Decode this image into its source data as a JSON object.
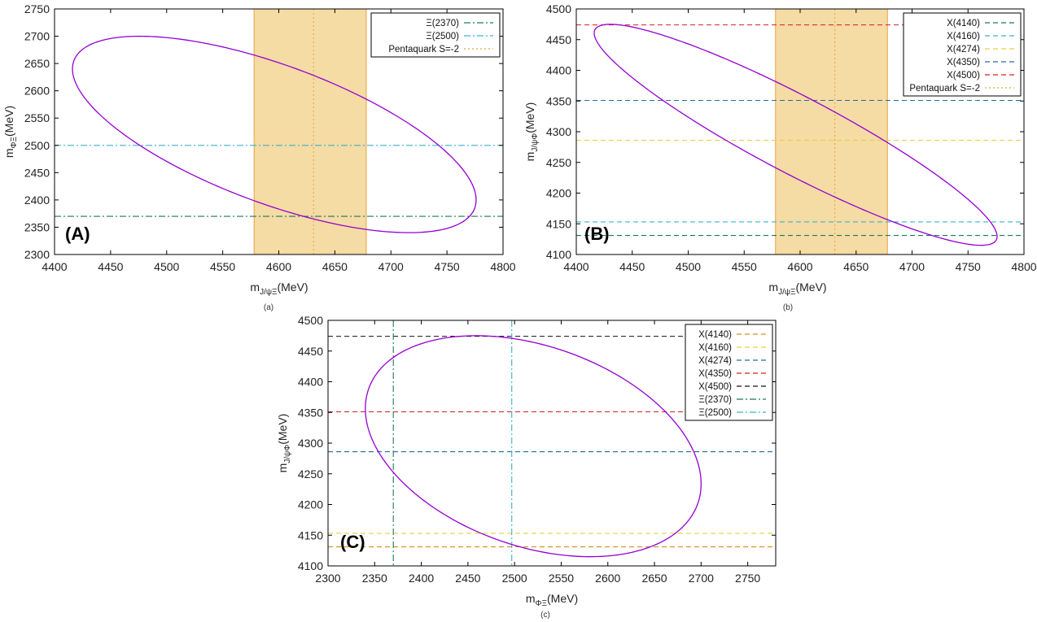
{
  "chart_data": [
    {
      "type": "line",
      "panel_letter": "(A)",
      "caption": "(a)",
      "xlabel": {
        "base": "m",
        "sub": "J/ψΞ",
        "unit": "(MeV)"
      },
      "ylabel": {
        "base": "m",
        "sub": "ΦΞ",
        "unit": "(MeV)"
      },
      "xlim": [
        4400,
        4800
      ],
      "ylim": [
        2300,
        2750
      ],
      "xticks": [
        4400,
        4450,
        4500,
        4550,
        4600,
        4650,
        4700,
        4750,
        4800
      ],
      "yticks": [
        2300,
        2350,
        2400,
        2450,
        2500,
        2550,
        2600,
        2650,
        2700,
        2750
      ],
      "ellipse": {
        "center": [
          4596,
          2520
        ],
        "semi_axis_x": 180,
        "semi_axis_y": 180,
        "rho": -0.667,
        "color": "#9400d3"
      },
      "band": {
        "x0": 4578,
        "x1": 4678,
        "center": 4631,
        "name": "Pentaquark S=-2",
        "color": "#e8a33a"
      },
      "hlines": [
        {
          "name": "Ξ(2370)",
          "y": 2370,
          "color": "#1a7a5a",
          "dash": "dashdot"
        },
        {
          "name": "Ξ(2500)",
          "y": 2500,
          "color": "#3ab0d0",
          "dash": "dashdot"
        }
      ],
      "vlines": [],
      "legend": [
        {
          "label": "Ξ(2370)",
          "color": "#1a7a5a",
          "dash": "dashdot"
        },
        {
          "label": "Ξ(2500)",
          "color": "#3ab0d0",
          "dash": "dashdot"
        },
        {
          "label": "Pentaquark S=-2",
          "color": "#e8a33a",
          "dash": "dot"
        }
      ],
      "legend_position": "top-right"
    },
    {
      "type": "line",
      "panel_letter": "(B)",
      "caption": "(b)",
      "xlabel": {
        "base": "m",
        "sub": "J/ψΞ",
        "unit": "(MeV)"
      },
      "ylabel": {
        "base": "m",
        "sub": "J/ψΦ",
        "unit": "(MeV)"
      },
      "xlim": [
        4400,
        4800
      ],
      "ylim": [
        4100,
        4500
      ],
      "xticks": [
        4400,
        4450,
        4500,
        4550,
        4600,
        4650,
        4700,
        4750,
        4800
      ],
      "yticks": [
        4100,
        4150,
        4200,
        4250,
        4300,
        4350,
        4400,
        4450,
        4500
      ],
      "ellipse": {
        "center": [
          4596,
          4295
        ],
        "semi_axis_x": 180,
        "semi_axis_y": 180,
        "rho": -0.92,
        "color": "#9400d3"
      },
      "band": {
        "x0": 4578,
        "x1": 4678,
        "center": 4631,
        "name": "Pentaquark S=-2",
        "color": "#e8a33a"
      },
      "hlines": [
        {
          "name": "X(4140)",
          "y": 4131,
          "color": "#1a7a5a",
          "dash": "dash"
        },
        {
          "name": "X(4160)",
          "y": 4153,
          "color": "#3ab0d0",
          "dash": "dash"
        },
        {
          "name": "X(4274)",
          "y": 4286,
          "color": "#e8d040",
          "dash": "dash"
        },
        {
          "name": "X(4350)",
          "y": 4351,
          "color": "#2a6a9a",
          "dash": "dash"
        },
        {
          "name": "X(4500)",
          "y": 4474,
          "color": "#d02020",
          "dash": "dash"
        }
      ],
      "vlines": [],
      "legend": [
        {
          "label": "X(4140)",
          "color": "#1a7a5a",
          "dash": "dash"
        },
        {
          "label": "X(4160)",
          "color": "#3ab0d0",
          "dash": "dash"
        },
        {
          "label": "X(4274)",
          "color": "#e8d040",
          "dash": "dash"
        },
        {
          "label": "X(4350)",
          "color": "#2a6a9a",
          "dash": "dash"
        },
        {
          "label": "X(4500)",
          "color": "#d02020",
          "dash": "dash"
        },
        {
          "label": "Pentaquark S=-2",
          "color": "#e8a33a",
          "dash": "dot"
        }
      ],
      "legend_position": "top-right"
    },
    {
      "type": "line",
      "panel_letter": "(C)",
      "caption": "(c)",
      "xlabel": {
        "base": "m",
        "sub": "ΦΞ",
        "unit": "(MeV)"
      },
      "ylabel": {
        "base": "m",
        "sub": "J/ψΦ",
        "unit": "(MeV)"
      },
      "xlim": [
        2300,
        2780
      ],
      "ylim": [
        4100,
        4500
      ],
      "xticks": [
        2300,
        2350,
        2400,
        2450,
        2500,
        2550,
        2600,
        2650,
        2700,
        2750
      ],
      "yticks": [
        4100,
        4150,
        4200,
        4250,
        4300,
        4350,
        4400,
        4450,
        4500
      ],
      "ellipse": {
        "center": [
          2520,
          4295
        ],
        "semi_axis_x": 180,
        "semi_axis_y": 180,
        "rho": -0.34,
        "color": "#9400d3"
      },
      "band": null,
      "hlines": [
        {
          "name": "X(4140)",
          "y": 4131,
          "color": "#d09020",
          "dash": "dash"
        },
        {
          "name": "X(4160)",
          "y": 4153,
          "color": "#e8d040",
          "dash": "dash"
        },
        {
          "name": "X(4274)",
          "y": 4286,
          "color": "#2a6a9a",
          "dash": "dash"
        },
        {
          "name": "X(4350)",
          "y": 4351,
          "color": "#d02020",
          "dash": "dash"
        },
        {
          "name": "X(4500)",
          "y": 4474,
          "color": "#111111",
          "dash": "dash"
        }
      ],
      "vlines": [
        {
          "name": "Ξ(2370)",
          "x": 2370,
          "color": "#1a7a5a",
          "dash": "dashdot"
        },
        {
          "name": "Ξ(2500)",
          "x": 2497,
          "color": "#3ab0d0",
          "dash": "dashdot"
        }
      ],
      "legend": [
        {
          "label": "X(4140)",
          "color": "#d09020",
          "dash": "dash"
        },
        {
          "label": "X(4160)",
          "color": "#e8d040",
          "dash": "dash"
        },
        {
          "label": "X(4274)",
          "color": "#2a6a9a",
          "dash": "dash"
        },
        {
          "label": "X(4350)",
          "color": "#d02020",
          "dash": "dash"
        },
        {
          "label": "X(4500)",
          "color": "#111111",
          "dash": "dash"
        },
        {
          "label": "Ξ(2370)",
          "color": "#1a7a5a",
          "dash": "dashdot"
        },
        {
          "label": "Ξ(2500)",
          "color": "#3ab0d0",
          "dash": "dashdot"
        }
      ],
      "legend_position": "top-right"
    }
  ]
}
